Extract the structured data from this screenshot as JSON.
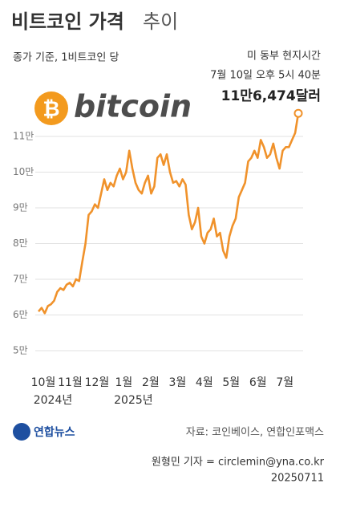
{
  "chart_data": {
    "type": "line",
    "title": "비트코인 가격",
    "title_light": "추이",
    "subtitle": "종가 기준, 1비트코인 당",
    "note_lines": [
      "미 동부 현지시간",
      "7월 10일 오후 5시 40분"
    ],
    "logo_mark": "₿",
    "logo_text": "bitcoin",
    "color": "#f0922b",
    "grid": true,
    "ylim": [
      48000,
      118000
    ],
    "yticks": [
      {
        "value": 50000,
        "label": "5만"
      },
      {
        "value": 60000,
        "label": "6만"
      },
      {
        "value": 70000,
        "label": "7만"
      },
      {
        "value": 80000,
        "label": "8만"
      },
      {
        "value": 90000,
        "label": "9만"
      },
      {
        "value": 100000,
        "label": "10만"
      },
      {
        "value": 110000,
        "label": "11만"
      }
    ],
    "x_labels": [
      "10월",
      "11월",
      "12월",
      "1월",
      "2월",
      "3월",
      "4월",
      "5월",
      "6월",
      "7월"
    ],
    "year_labels": [
      "2024년",
      null,
      null,
      "2025년",
      null,
      null,
      null,
      null,
      null,
      null
    ],
    "values": [
      61000,
      62000,
      60500,
      62500,
      63000,
      64000,
      66500,
      67500,
      67000,
      68500,
      69000,
      68000,
      70000,
      69500,
      75000,
      80000,
      88000,
      89000,
      91000,
      90000,
      94000,
      98000,
      95000,
      97000,
      96000,
      99000,
      101000,
      98000,
      100000,
      106000,
      101000,
      97000,
      95000,
      94000,
      97000,
      99000,
      94000,
      96000,
      104000,
      105000,
      102000,
      105000,
      100000,
      97000,
      97500,
      96000,
      98000,
      96500,
      88000,
      84000,
      86000,
      90000,
      82000,
      80000,
      83000,
      84000,
      87000,
      82000,
      83000,
      78000,
      76000,
      82000,
      85000,
      87000,
      93000,
      95000,
      97000,
      103000,
      104000,
      106000,
      104000,
      109000,
      107000,
      104000,
      105000,
      108000,
      104000,
      101000,
      106000,
      107000,
      107000,
      109000,
      111000,
      116474
    ],
    "value_labels": [
      null,
      null,
      null,
      null,
      null,
      null,
      null,
      null,
      null,
      null,
      null,
      null,
      null,
      null,
      null,
      null,
      null,
      null,
      null,
      null,
      null,
      null,
      null,
      null,
      null,
      null,
      null,
      null,
      null,
      null,
      null,
      null,
      null,
      null,
      null,
      null,
      null,
      null,
      null,
      null,
      null,
      null,
      null,
      null,
      null,
      null,
      null,
      null,
      null,
      null,
      null,
      null,
      null,
      null,
      null,
      null,
      null,
      null,
      null,
      null,
      null,
      null,
      null,
      null,
      null,
      null,
      null,
      null,
      null,
      null,
      null,
      null,
      null,
      null,
      null,
      null,
      null,
      null,
      null,
      null,
      null,
      null,
      null,
      "11만6,474달러"
    ],
    "source_logo": "연합뉴스",
    "source": "자료: 코인베이스, 연합인포맥스",
    "credit": "원형민 기자 = circlemin@yna.co.kr",
    "date": "20250711"
  }
}
